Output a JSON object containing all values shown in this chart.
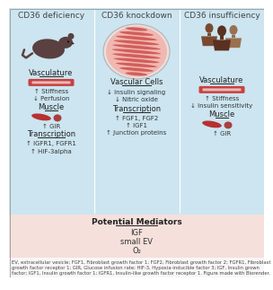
{
  "bg_blue": "#cce5f0",
  "bg_pink": "#f5e0dc",
  "bg_white_legend": "#f7f7f7",
  "col_titles": [
    "CD36 deficiency",
    "CD36 knockdown",
    "CD36 insufficiency"
  ],
  "col_title_fontsize": 6.5,
  "col_title_color": "#444444",
  "vasc_label": "Vasculature",
  "vasc_cells_label": "Vascular Cells",
  "muscle_label": "Muscle",
  "transcription_label": "Transcription",
  "col1_vasc_items": [
    "↑ Stiffness",
    "↓ Perfusion"
  ],
  "col1_muscle_items": [
    "↑ GIR"
  ],
  "col1_trans_items": [
    "↑ IGFR1, FGFR1",
    "↑ HIF-3alpha"
  ],
  "col2_vasc_items": [
    "↓ Insulin signaling",
    "↓ Nitric oxide"
  ],
  "col2_trans_items": [
    "↑ FGF1, FGF2",
    "↑ IGF1",
    "↑ Junction proteins"
  ],
  "col3_vasc_items": [
    "↑ Stiffness",
    "↓ Insulin sensitivity"
  ],
  "col3_muscle_items": [
    "↑ GIR"
  ],
  "potential_title": "Potential Mediators",
  "potential_items": [
    "IGF",
    "small EV",
    "O₂"
  ],
  "legend_text": "EV, extracellular vesicle; FGF1, Fibroblast growth factor 1; FGF2, Fibroblast growth factor 2; FGFR1, Fibroblast growth factor receptor 1; GIR, Glucose infusion rate; HIF-3, Hypoxia-inducible factor 3; IGF, Insulin grown factor; IGF1, Insulin growth factor 1; IGFR1, Insulin-like growth factor receptor 1. Figure made with Biorender.",
  "item_fontsize": 5.0,
  "label_fontsize": 6.0,
  "legend_fontsize": 3.8,
  "border_color": "#999999",
  "vessel_red": "#c94040",
  "vessel_pink": "#e8b8b8",
  "muscle_red": "#b83030",
  "mouse_color": "#5a4040",
  "skin_dark": "#7a4a30",
  "skin_mid": "#5a3020",
  "skin_light": "#9a7050"
}
